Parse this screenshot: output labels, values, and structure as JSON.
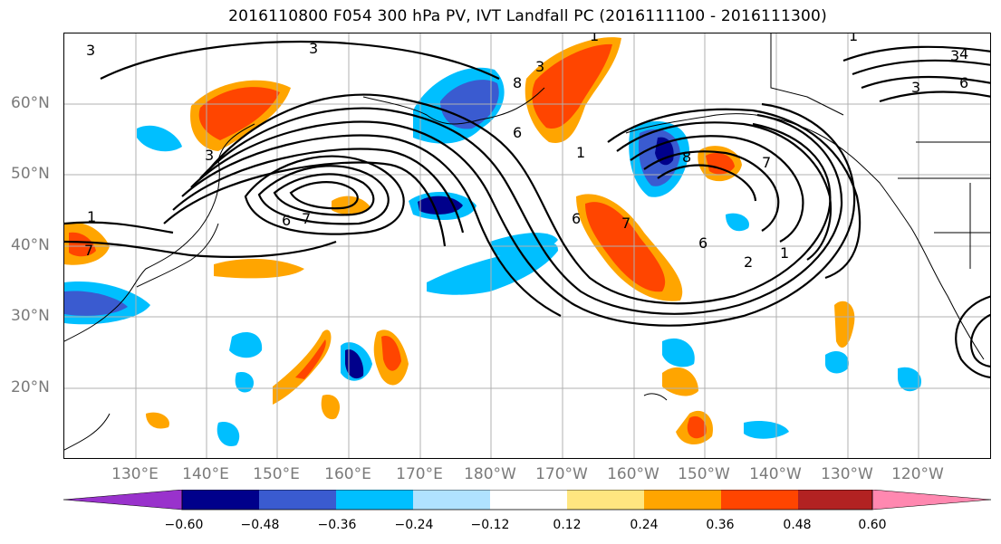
{
  "title": "2016110800 F054 300 hPa PV, IVT Landfall PC (2016111100 - 2016111300)",
  "lat_labels": [
    "60°N",
    "50°N",
    "40°N",
    "30°N",
    "20°N"
  ],
  "lon_labels": [
    "130°E",
    "140°E",
    "150°E",
    "160°E",
    "170°E",
    "180°W",
    "170°W",
    "160°W",
    "150°W",
    "140°W",
    "130°W",
    "120°W"
  ],
  "contour_labels": [
    "3",
    "3",
    "1",
    "8",
    "6",
    "7",
    "6",
    "7",
    "6",
    "2",
    "1",
    "7",
    "8",
    "1",
    "3",
    "4",
    "3",
    "6",
    "1",
    "3",
    "1",
    "7",
    "3",
    "6"
  ],
  "colorbar": {
    "ticks": [
      "−0.60",
      "−0.48",
      "−0.36",
      "−0.24",
      "−0.12",
      "0.12",
      "0.24",
      "0.36",
      "0.48",
      "0.60"
    ],
    "colors": [
      "#9932cc",
      "#00008b",
      "#3a5bd0",
      "#00bfff",
      "#b0e2ff",
      "#ffffff",
      "#ffe680",
      "#ffa500",
      "#ff4500",
      "#b22222",
      "#ff88b0"
    ]
  }
}
